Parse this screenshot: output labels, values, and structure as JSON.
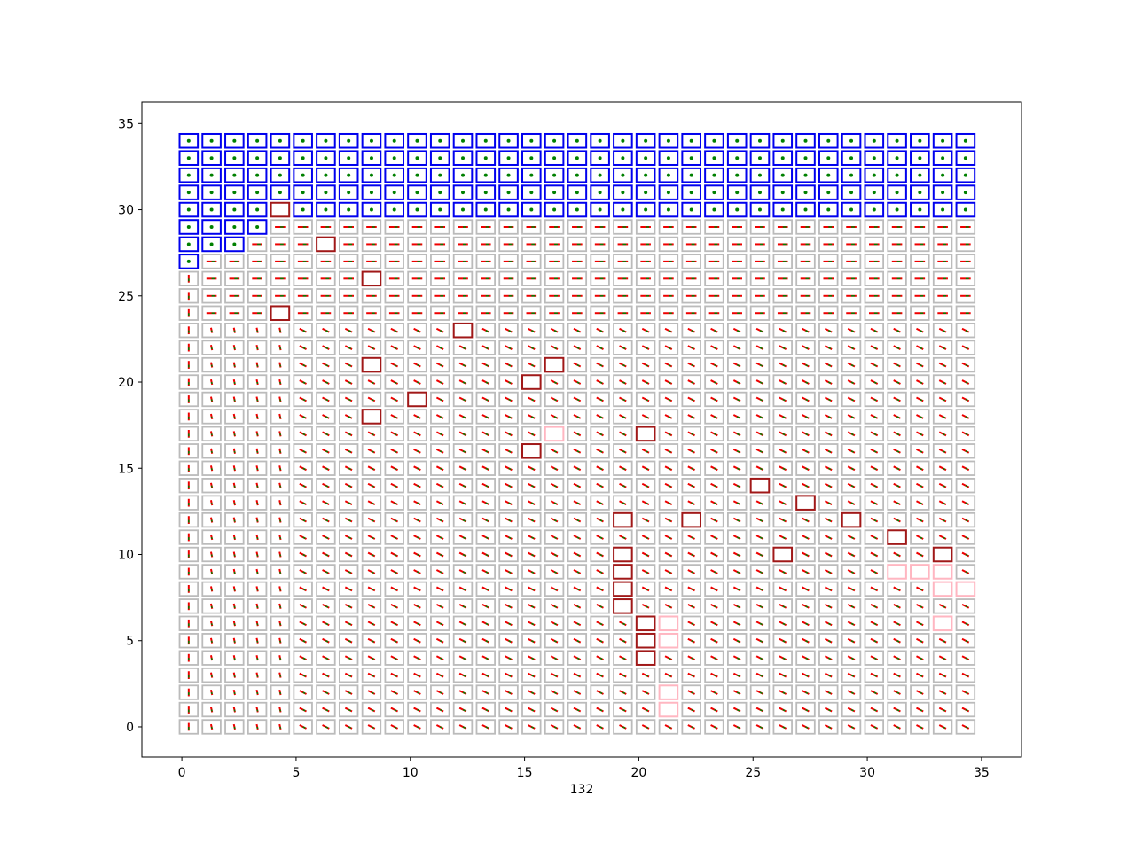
{
  "chart_data": {
    "type": "grid-policy",
    "xlabel": "132",
    "ylabel": "",
    "title": "",
    "xlim": [
      -1.75,
      36.75
    ],
    "ylim": [
      -1.75,
      36.25
    ],
    "xticks": [
      0,
      5,
      10,
      15,
      20,
      25,
      30,
      35
    ],
    "yticks": [
      0,
      5,
      10,
      15,
      20,
      25,
      30,
      35
    ],
    "grid_size": 35,
    "colors": {
      "default_cell": "#bbbbbb",
      "blue_cell": "#0000ee",
      "darkred_cell": "#a01818",
      "pink_cell": "#ffb6c1",
      "arrow_red": "#ee0000",
      "arrow_green": "#008000"
    },
    "blue_cells": [
      [
        0,
        27
      ],
      [
        0,
        28
      ],
      [
        1,
        28
      ],
      [
        2,
        28
      ],
      [
        0,
        29
      ],
      [
        1,
        29
      ],
      [
        2,
        29
      ],
      [
        3,
        29
      ],
      [
        0,
        30
      ],
      [
        1,
        30
      ],
      [
        2,
        30
      ],
      [
        3,
        30
      ],
      [
        5,
        30
      ],
      [
        6,
        30
      ],
      [
        7,
        30
      ],
      [
        8,
        30
      ],
      [
        9,
        30
      ],
      [
        10,
        30
      ],
      [
        11,
        30
      ],
      [
        12,
        30
      ],
      [
        13,
        30
      ],
      [
        14,
        30
      ],
      [
        15,
        30
      ],
      [
        16,
        30
      ],
      [
        17,
        30
      ],
      [
        18,
        30
      ],
      [
        19,
        30
      ],
      [
        20,
        30
      ],
      [
        21,
        30
      ],
      [
        22,
        30
      ],
      [
        23,
        30
      ],
      [
        24,
        30
      ],
      [
        25,
        30
      ],
      [
        26,
        30
      ],
      [
        27,
        30
      ],
      [
        28,
        30
      ],
      [
        29,
        30
      ],
      [
        30,
        30
      ],
      [
        31,
        30
      ],
      [
        32,
        30
      ],
      [
        33,
        30
      ],
      [
        34,
        30
      ],
      [
        0,
        31
      ],
      [
        1,
        31
      ],
      [
        2,
        31
      ],
      [
        3,
        31
      ],
      [
        4,
        31
      ],
      [
        5,
        31
      ],
      [
        6,
        31
      ],
      [
        7,
        31
      ],
      [
        8,
        31
      ],
      [
        9,
        31
      ],
      [
        10,
        31
      ],
      [
        11,
        31
      ],
      [
        12,
        31
      ],
      [
        13,
        31
      ],
      [
        14,
        31
      ],
      [
        15,
        31
      ],
      [
        16,
        31
      ],
      [
        17,
        31
      ],
      [
        18,
        31
      ],
      [
        19,
        31
      ],
      [
        20,
        31
      ],
      [
        21,
        31
      ],
      [
        22,
        31
      ],
      [
        23,
        31
      ],
      [
        24,
        31
      ],
      [
        25,
        31
      ],
      [
        26,
        31
      ],
      [
        27,
        31
      ],
      [
        28,
        31
      ],
      [
        29,
        31
      ],
      [
        30,
        31
      ],
      [
        31,
        31
      ],
      [
        32,
        31
      ],
      [
        33,
        31
      ],
      [
        34,
        31
      ],
      [
        0,
        32
      ],
      [
        1,
        32
      ],
      [
        2,
        32
      ],
      [
        3,
        32
      ],
      [
        4,
        32
      ],
      [
        5,
        32
      ],
      [
        6,
        32
      ],
      [
        7,
        32
      ],
      [
        8,
        32
      ],
      [
        9,
        32
      ],
      [
        10,
        32
      ],
      [
        11,
        32
      ],
      [
        12,
        32
      ],
      [
        13,
        32
      ],
      [
        14,
        32
      ],
      [
        15,
        32
      ],
      [
        16,
        32
      ],
      [
        17,
        32
      ],
      [
        18,
        32
      ],
      [
        19,
        32
      ],
      [
        20,
        32
      ],
      [
        21,
        32
      ],
      [
        22,
        32
      ],
      [
        23,
        32
      ],
      [
        24,
        32
      ],
      [
        25,
        32
      ],
      [
        26,
        32
      ],
      [
        27,
        32
      ],
      [
        28,
        32
      ],
      [
        29,
        32
      ],
      [
        30,
        32
      ],
      [
        31,
        32
      ],
      [
        32,
        32
      ],
      [
        33,
        32
      ],
      [
        34,
        32
      ],
      [
        0,
        33
      ],
      [
        1,
        33
      ],
      [
        2,
        33
      ],
      [
        3,
        33
      ],
      [
        4,
        33
      ],
      [
        5,
        33
      ],
      [
        6,
        33
      ],
      [
        7,
        33
      ],
      [
        8,
        33
      ],
      [
        9,
        33
      ],
      [
        10,
        33
      ],
      [
        11,
        33
      ],
      [
        12,
        33
      ],
      [
        13,
        33
      ],
      [
        14,
        33
      ],
      [
        15,
        33
      ],
      [
        16,
        33
      ],
      [
        17,
        33
      ],
      [
        18,
        33
      ],
      [
        19,
        33
      ],
      [
        20,
        33
      ],
      [
        21,
        33
      ],
      [
        22,
        33
      ],
      [
        23,
        33
      ],
      [
        24,
        33
      ],
      [
        25,
        33
      ],
      [
        26,
        33
      ],
      [
        27,
        33
      ],
      [
        28,
        33
      ],
      [
        29,
        33
      ],
      [
        30,
        33
      ],
      [
        31,
        33
      ],
      [
        32,
        33
      ],
      [
        33,
        33
      ],
      [
        34,
        33
      ],
      [
        0,
        34
      ],
      [
        1,
        34
      ],
      [
        2,
        34
      ],
      [
        3,
        34
      ],
      [
        4,
        34
      ],
      [
        5,
        34
      ],
      [
        6,
        34
      ],
      [
        7,
        34
      ],
      [
        8,
        34
      ],
      [
        9,
        34
      ],
      [
        10,
        34
      ],
      [
        11,
        34
      ],
      [
        12,
        34
      ],
      [
        13,
        34
      ],
      [
        14,
        34
      ],
      [
        15,
        34
      ],
      [
        16,
        34
      ],
      [
        17,
        34
      ],
      [
        18,
        34
      ],
      [
        19,
        34
      ],
      [
        20,
        34
      ],
      [
        21,
        34
      ],
      [
        22,
        34
      ],
      [
        23,
        34
      ],
      [
        24,
        34
      ],
      [
        25,
        34
      ],
      [
        26,
        34
      ],
      [
        27,
        34
      ],
      [
        28,
        34
      ],
      [
        29,
        34
      ],
      [
        30,
        34
      ],
      [
        31,
        34
      ],
      [
        32,
        34
      ],
      [
        33,
        34
      ],
      [
        34,
        34
      ]
    ],
    "darkred_cells": [
      [
        4,
        30
      ],
      [
        6,
        28
      ],
      [
        8,
        26
      ],
      [
        4,
        24
      ],
      [
        12,
        23
      ],
      [
        8,
        21
      ],
      [
        16,
        21
      ],
      [
        15,
        20
      ],
      [
        10,
        19
      ],
      [
        8,
        18
      ],
      [
        20,
        17
      ],
      [
        15,
        16
      ],
      [
        25,
        14
      ],
      [
        27,
        13
      ],
      [
        19,
        12
      ],
      [
        22,
        12
      ],
      [
        29,
        12
      ],
      [
        31,
        11
      ],
      [
        19,
        10
      ],
      [
        26,
        10
      ],
      [
        33,
        10
      ],
      [
        19,
        9
      ],
      [
        19,
        8
      ],
      [
        19,
        7
      ],
      [
        20,
        6
      ],
      [
        20,
        5
      ],
      [
        20,
        4
      ]
    ],
    "pink_cells": [
      [
        16,
        17
      ],
      [
        31,
        9
      ],
      [
        32,
        9
      ],
      [
        33,
        9
      ],
      [
        33,
        8
      ],
      [
        34,
        8
      ],
      [
        21,
        6
      ],
      [
        33,
        6
      ],
      [
        21,
        5
      ],
      [
        21,
        2
      ],
      [
        21,
        1
      ]
    ],
    "arrow_zones": [
      {
        "region": "x <= 0",
        "dx": 0,
        "dy": -0.45
      },
      {
        "region": "x = 1..4, y <= 22",
        "dx": 0,
        "dy": -0.3
      },
      {
        "region": "y >= 24 (above obstacles)",
        "dx": 0.45,
        "dy": 0
      },
      {
        "region": "interior",
        "dx": 0.3,
        "dy": -0.2
      }
    ]
  }
}
